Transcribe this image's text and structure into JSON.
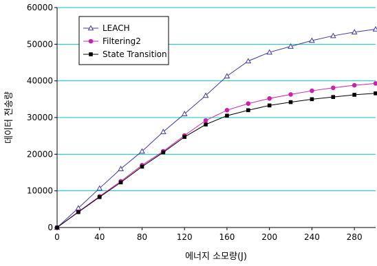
{
  "chart_data": {
    "type": "line",
    "title": "",
    "xlabel": "에너지 소모량(J)",
    "ylabel": "데이터 전송량",
    "xlim": [
      0,
      300
    ],
    "ylim": [
      0,
      60000
    ],
    "xticks": [
      0,
      40,
      80,
      120,
      160,
      200,
      240,
      280
    ],
    "yticks": [
      0,
      10000,
      20000,
      30000,
      40000,
      50000,
      60000
    ],
    "x_tick_labels": [
      "0",
      "40",
      "80",
      "120",
      "160",
      "200",
      "240",
      "280"
    ],
    "y_tick_labels": [
      "0",
      "10000",
      "20000",
      "30000",
      "40000",
      "50000",
      "60000"
    ],
    "grid": "horizontal",
    "legend_position": "top-left",
    "plot_background": "#ffffff",
    "grid_color": "#00c8c8",
    "x": [
      0,
      20,
      40,
      60,
      80,
      100,
      120,
      140,
      160,
      180,
      200,
      220,
      240,
      260,
      280,
      300
    ],
    "series": [
      {
        "name": "LEACH",
        "marker": "open-triangle",
        "color": "#3a3aa0",
        "values": [
          0,
          5300,
          10700,
          16000,
          20800,
          26100,
          31000,
          36000,
          41300,
          45400,
          47800,
          49400,
          51000,
          52300,
          53300,
          54100
        ]
      },
      {
        "name": "Filtering2",
        "marker": "circle",
        "color": "#cc22aa",
        "values": [
          0,
          4300,
          8500,
          12600,
          17000,
          20800,
          25100,
          29200,
          32000,
          33800,
          35200,
          36300,
          37300,
          38100,
          38800,
          39300
        ]
      },
      {
        "name": "State Transition",
        "marker": "square",
        "color": "#000000",
        "values": [
          0,
          4200,
          8300,
          12300,
          16600,
          20500,
          24700,
          28100,
          30500,
          32000,
          33300,
          34200,
          35000,
          35600,
          36200,
          36600
        ]
      }
    ]
  }
}
